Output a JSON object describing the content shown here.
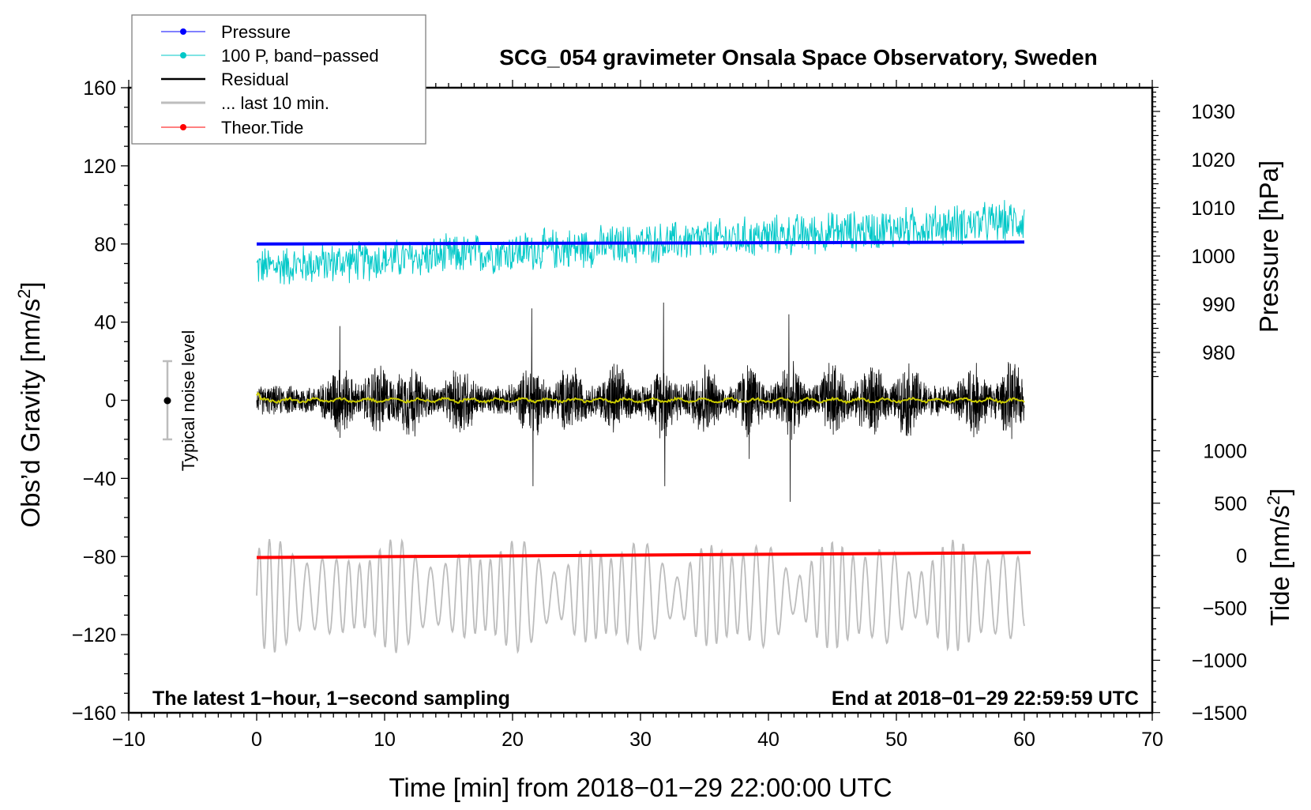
{
  "chart_data": {
    "type": "line",
    "title": "SCG_054 gravimeter Onsala Space Observatory, Sweden",
    "xlabel": "Time [min] from 2018−01−29 22:00:00 UTC",
    "ylabel": "Obs’d Gravity [nm/s²]",
    "ylabel_main": "Obs’d Gravity [nm/s",
    "ylabel_sup": "2",
    "ylabel_end": "]",
    "y2label": "Pressure [hPa]",
    "y3label_main": "Tide [nm/s",
    "y3label_sup": "2",
    "y3label_end": "]",
    "xlim": [
      -10,
      70
    ],
    "ylim": [
      -160,
      160
    ],
    "x_ticks": [
      "−10",
      "0",
      "10",
      "20",
      "30",
      "40",
      "50",
      "60",
      "70"
    ],
    "y_ticks": [
      "160",
      "120",
      "80",
      "40",
      "0",
      "−40",
      "−80",
      "−120",
      "−160"
    ],
    "pressure_ticks": [
      "1030",
      "1020",
      "1010",
      "1000",
      "990",
      "980"
    ],
    "tide_ticks": [
      "1000",
      "500",
      "0",
      "−500",
      "−1000",
      "−1500"
    ],
    "note_left": "The latest 1−hour, 1−second sampling",
    "note_right": "End at 2018−01−29 22:59:59 UTC",
    "noise_label": "Typical noise level",
    "noise_level": 20,
    "legend": {
      "placement": "top-left",
      "entries": [
        {
          "label": "Pressure",
          "color": "#0000ff"
        },
        {
          "label": "100 P, band−passed",
          "color": "#00c8c8"
        },
        {
          "label": "Residual",
          "color": "#000000"
        },
        {
          "label": "... last 10 min.",
          "color": "#bdbdbd"
        },
        {
          "label": "Theor.Tide",
          "color": "#ff0000"
        }
      ]
    },
    "series": [
      {
        "name": "Pressure",
        "unit": "hPa",
        "x_range": [
          0,
          60
        ],
        "start": 1002.5,
        "end": 1002.9
      },
      {
        "name": "100 P, band-passed",
        "unit": "nm/s2 (plot units)",
        "x_range": [
          0,
          60
        ],
        "start_mean": 68,
        "end_mean": 92,
        "amplitude": 10
      },
      {
        "name": "Residual",
        "unit": "nm/s2",
        "x_range": [
          0,
          60
        ],
        "mean": 0,
        "typical_amplitude": 15,
        "peaks": [
          {
            "x": 6.5,
            "y": 38
          },
          {
            "x": 21.5,
            "y": 47
          },
          {
            "x": 21.6,
            "y": -44
          },
          {
            "x": 31.8,
            "y": 50
          },
          {
            "x": 31.9,
            "y": -44
          },
          {
            "x": 41.6,
            "y": 44
          },
          {
            "x": 41.7,
            "y": -52
          },
          {
            "x": 38.5,
            "y": -30
          }
        ]
      },
      {
        "name": "Residual smoothed",
        "color": "#cccc00",
        "mean": 0
      },
      {
        "name": "... last 10 min.",
        "unit": "nm/s2",
        "x_range": [
          0,
          60
        ],
        "center": -100,
        "min": -134,
        "max": -65
      },
      {
        "name": "Theor.Tide",
        "unit": "nm/s2",
        "x_range": [
          0,
          60.5
        ],
        "start": -9,
        "end": 37
      }
    ]
  }
}
